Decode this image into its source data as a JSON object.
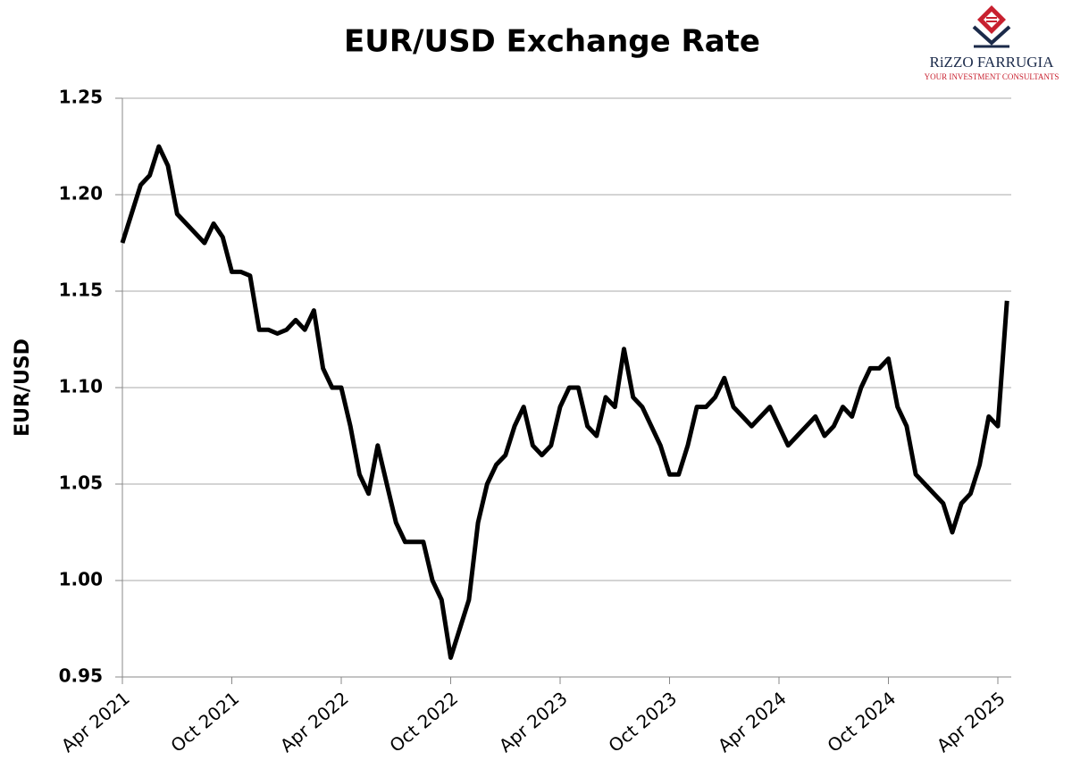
{
  "chart_data": {
    "type": "line",
    "title": "EUR/USD Exchange Rate",
    "y_label": "EUR/USD",
    "categories": [
      "Apr 2021",
      null,
      null,
      null,
      null,
      null,
      null,
      null,
      null,
      null,
      null,
      null,
      "Oct 2021",
      null,
      null,
      null,
      null,
      null,
      null,
      null,
      null,
      null,
      null,
      null,
      "Apr 2022",
      null,
      null,
      null,
      null,
      null,
      null,
      null,
      null,
      null,
      null,
      null,
      "Oct 2022",
      null,
      null,
      null,
      null,
      null,
      null,
      null,
      null,
      null,
      null,
      null,
      "Apr 2023",
      null,
      null,
      null,
      null,
      null,
      null,
      null,
      null,
      null,
      null,
      null,
      "Oct 2023",
      null,
      null,
      null,
      null,
      null,
      null,
      null,
      null,
      null,
      null,
      null,
      "Apr 2024",
      null,
      null,
      null,
      null,
      null,
      null,
      null,
      null,
      null,
      null,
      null,
      "Oct 2024",
      null,
      null,
      null,
      null,
      null,
      null,
      null,
      null,
      null,
      null,
      null,
      "Apr 2025",
      null
    ],
    "values": [
      1.175,
      1.19,
      1.205,
      1.21,
      1.225,
      1.215,
      1.19,
      1.185,
      1.18,
      1.175,
      1.185,
      1.178,
      1.16,
      1.16,
      1.158,
      1.13,
      1.13,
      1.128,
      1.13,
      1.135,
      1.13,
      1.14,
      1.11,
      1.1,
      1.1,
      1.08,
      1.055,
      1.045,
      1.07,
      1.05,
      1.03,
      1.02,
      1.02,
      1.02,
      1.0,
      0.99,
      0.96,
      0.975,
      0.99,
      1.03,
      1.05,
      1.06,
      1.065,
      1.08,
      1.09,
      1.07,
      1.065,
      1.07,
      1.09,
      1.1,
      1.1,
      1.08,
      1.075,
      1.095,
      1.09,
      1.12,
      1.095,
      1.09,
      1.08,
      1.07,
      1.055,
      1.055,
      1.07,
      1.09,
      1.09,
      1.095,
      1.105,
      1.09,
      1.085,
      1.08,
      1.085,
      1.09,
      1.08,
      1.07,
      1.075,
      1.08,
      1.085,
      1.075,
      1.08,
      1.09,
      1.085,
      1.1,
      1.11,
      1.11,
      1.115,
      1.09,
      1.08,
      1.055,
      1.05,
      1.045,
      1.04,
      1.025,
      1.04,
      1.045,
      1.06,
      1.085,
      1.08,
      1.145
    ],
    "color": "#000000",
    "ylim": [
      0.95,
      1.25
    ],
    "yticks": [
      0.95,
      {
        "value": 1.0,
        "label": "1.00"
      },
      1.05,
      {
        "value": 1.1,
        "label": "1.10"
      },
      1.15,
      {
        "value": 1.2,
        "label": "1.20"
      },
      1.25
    ],
    "grid": true
  },
  "logo": {
    "name": "RiZZO FARRUGIA",
    "tagline": "YOUR INVESTMENT CONSULTANTS"
  }
}
